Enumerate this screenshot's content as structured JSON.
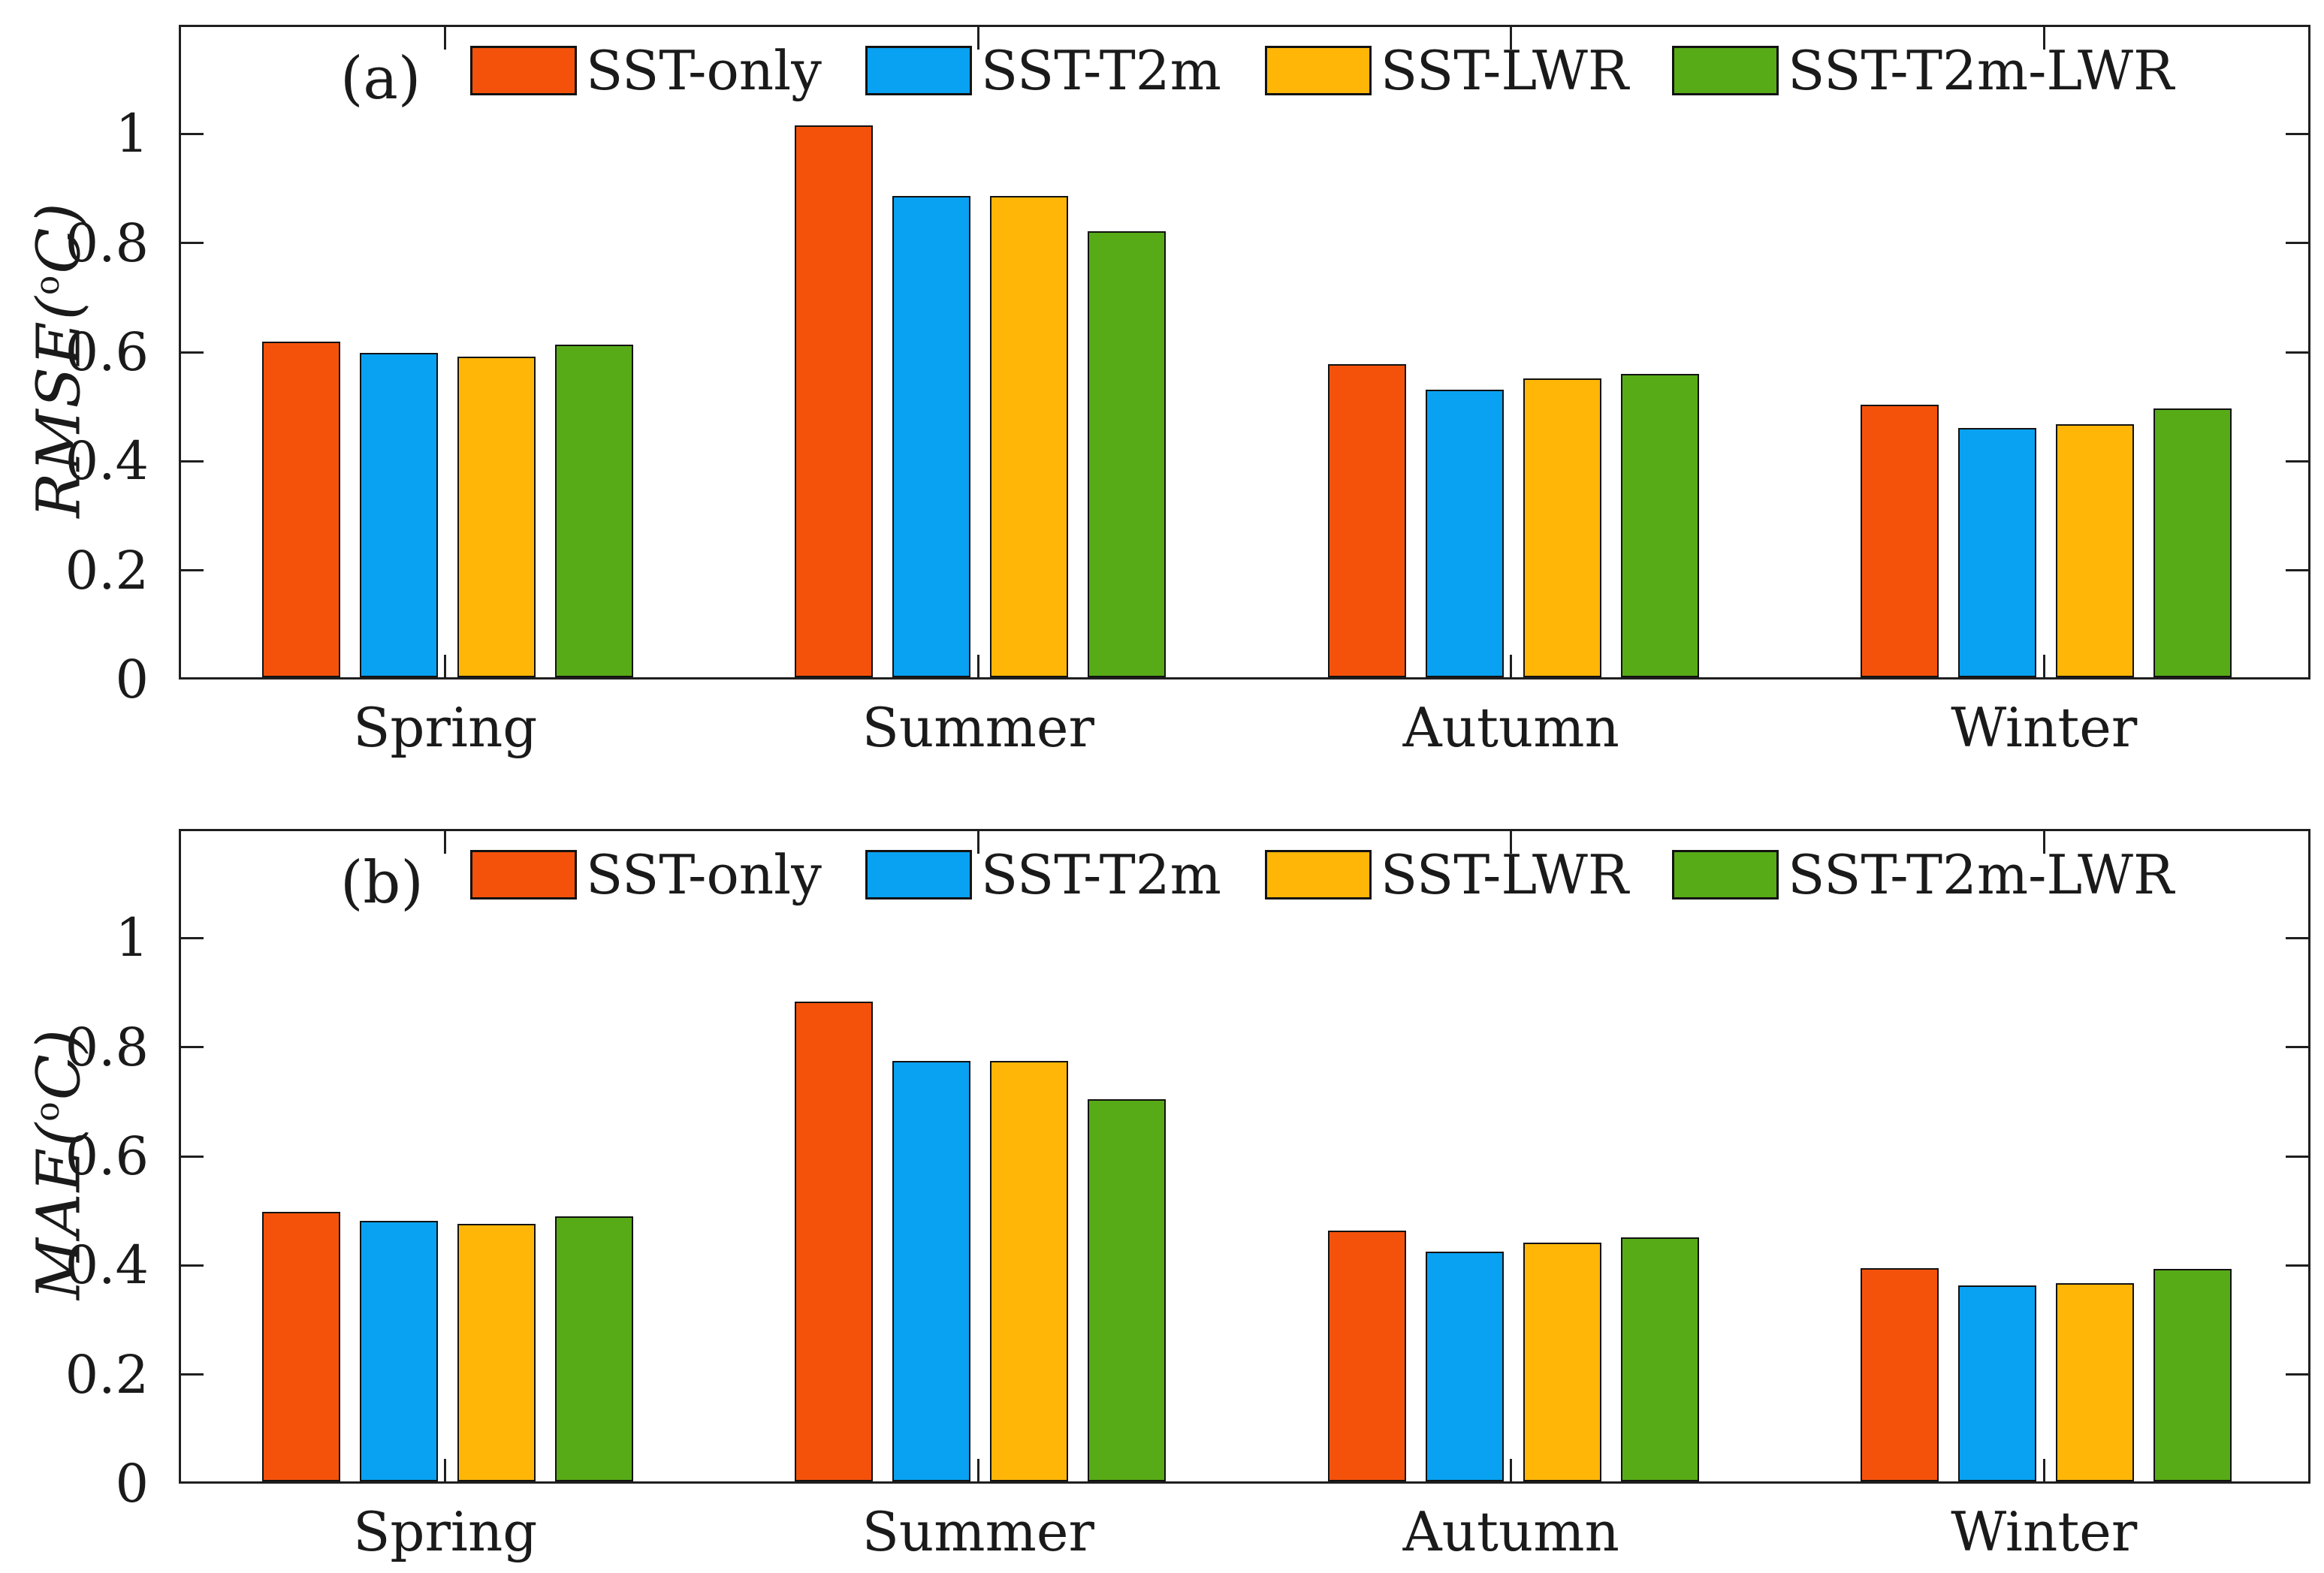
{
  "figure": {
    "background": "#ffffff",
    "axis_color": "#1f1f1f",
    "bar_edge_color": "#121212"
  },
  "series_colors": [
    "#F4520B",
    "#09A1F1",
    "#FFB607",
    "#57AB17"
  ],
  "chart_data": [
    {
      "type": "bar",
      "panel_label": "(a)",
      "ylabel_main": "RMSE",
      "ylabel_pre": "(",
      "ylabel_sup": "o",
      "ylabel_post": "C)",
      "categories": [
        "Spring",
        "Summer",
        "Autumn",
        "Winter"
      ],
      "series": [
        {
          "name": "SST-only",
          "color": "#F4520B",
          "values": [
            0.615,
            1.012,
            0.574,
            0.5
          ]
        },
        {
          "name": "SST-T2m",
          "color": "#09A1F1",
          "values": [
            0.595,
            0.882,
            0.527,
            0.457
          ]
        },
        {
          "name": "SST-LWR",
          "color": "#FFB607",
          "values": [
            0.588,
            0.882,
            0.548,
            0.464
          ]
        },
        {
          "name": "SST-T2m-LWR",
          "color": "#57AB17",
          "values": [
            0.61,
            0.818,
            0.556,
            0.493
          ]
        }
      ],
      "ylim": [
        0,
        1.2
      ],
      "yticks": [
        {
          "v": 0,
          "label": "0"
        },
        {
          "v": 0.2,
          "label": "0.2"
        },
        {
          "v": 0.4,
          "label": "0.4"
        },
        {
          "v": 0.6,
          "label": "0.6"
        },
        {
          "v": 0.8,
          "label": "0.8"
        },
        {
          "v": 1,
          "label": "1"
        }
      ],
      "grid": false,
      "legend_position": "top-inside"
    },
    {
      "type": "bar",
      "panel_label": "(b)",
      "ylabel_main": "MAE",
      "ylabel_pre": "(",
      "ylabel_sup": "o",
      "ylabel_post": "C)",
      "categories": [
        "Spring",
        "Summer",
        "Autumn",
        "Winter"
      ],
      "series": [
        {
          "name": "SST-only",
          "color": "#F4520B",
          "values": [
            0.494,
            0.88,
            0.459,
            0.391
          ]
        },
        {
          "name": "SST-T2m",
          "color": "#09A1F1",
          "values": [
            0.478,
            0.771,
            0.421,
            0.359
          ]
        },
        {
          "name": "SST-LWR",
          "color": "#FFB607",
          "values": [
            0.472,
            0.771,
            0.438,
            0.363
          ]
        },
        {
          "name": "SST-T2m-LWR",
          "color": "#57AB17",
          "values": [
            0.486,
            0.701,
            0.447,
            0.389
          ]
        }
      ],
      "ylim": [
        0,
        1.2
      ],
      "yticks": [
        {
          "v": 0,
          "label": "0"
        },
        {
          "v": 0.2,
          "label": "0.2"
        },
        {
          "v": 0.4,
          "label": "0.4"
        },
        {
          "v": 0.6,
          "label": "0.6"
        },
        {
          "v": 0.8,
          "label": "0.8"
        },
        {
          "v": 1,
          "label": "1"
        }
      ],
      "grid": false,
      "legend_position": "top-inside"
    }
  ],
  "layout_note_values_visible_only": true
}
